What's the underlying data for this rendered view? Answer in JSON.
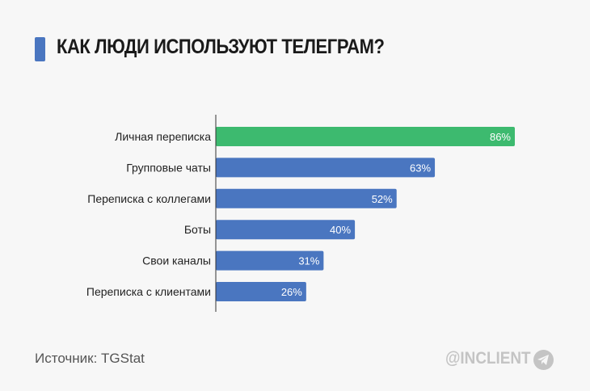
{
  "title": "КАК ЛЮДИ ИСПОЛЬЗУЮТ ТЕЛЕГРАМ?",
  "source": "Источник: TGStat",
  "brand": "@INCLIENT",
  "brand_icon": "telegram-icon",
  "colors": {
    "highlight": "#3dba6f",
    "bar": "#4a76c0"
  },
  "chart_data": {
    "type": "bar",
    "orientation": "horizontal",
    "categories": [
      "Личная переписка",
      "Групповые чаты",
      "Переписка с коллегами",
      "Боты",
      "Свои каналы",
      "Переписка с клиентами"
    ],
    "values": [
      86,
      63,
      52,
      40,
      31,
      26
    ],
    "labels": [
      "86%",
      "63%",
      "52%",
      "40%",
      "31%",
      "26%"
    ],
    "unit": "%",
    "xlim": [
      0,
      100
    ],
    "grid": false,
    "highlight_index": 0
  }
}
